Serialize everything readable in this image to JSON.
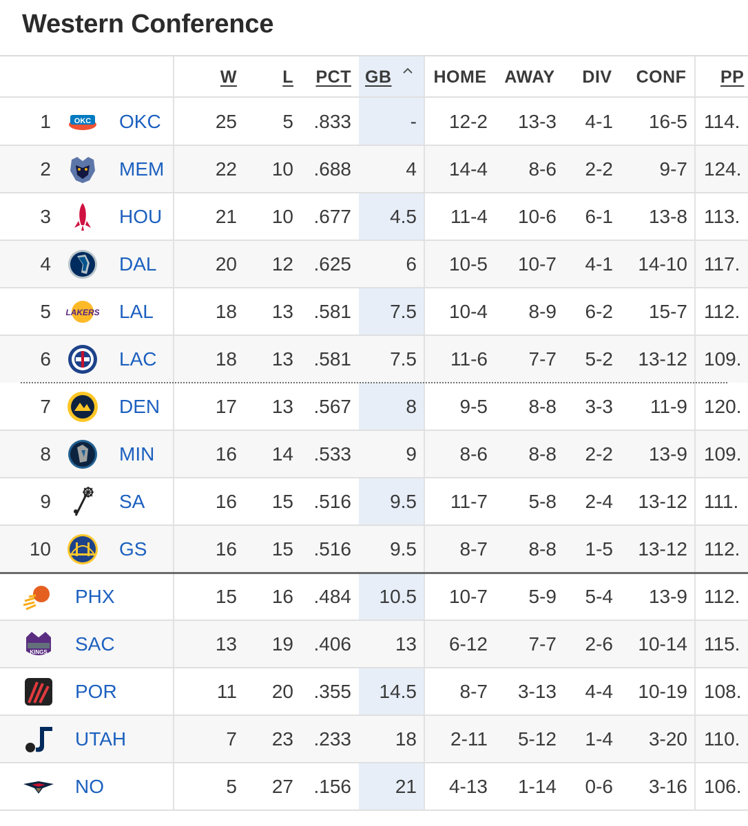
{
  "title": "Western Conference",
  "columns": {
    "w": "W",
    "l": "L",
    "pct": "PCT",
    "gb": "GB",
    "gb_sort_icon": "chevron-up-icon",
    "home": "HOME",
    "away": "AWAY",
    "div": "DIV",
    "conf": "CONF",
    "ppg": "PP"
  },
  "rows": [
    {
      "rank": "1",
      "team": "OKC",
      "logo": "okc-thunder-logo",
      "w": "25",
      "l": "5",
      "pct": ".833",
      "gb": "-",
      "home": "12-2",
      "away": "13-3",
      "div": "4-1",
      "conf": "16-5",
      "ppg": "114."
    },
    {
      "rank": "2",
      "team": "MEM",
      "logo": "memphis-grizzlies-logo",
      "w": "22",
      "l": "10",
      "pct": ".688",
      "gb": "4",
      "home": "14-4",
      "away": "8-6",
      "div": "2-2",
      "conf": "9-7",
      "ppg": "124."
    },
    {
      "rank": "3",
      "team": "HOU",
      "logo": "houston-rockets-logo",
      "w": "21",
      "l": "10",
      "pct": ".677",
      "gb": "4.5",
      "home": "11-4",
      "away": "10-6",
      "div": "6-1",
      "conf": "13-8",
      "ppg": "113."
    },
    {
      "rank": "4",
      "team": "DAL",
      "logo": "dallas-mavericks-logo",
      "w": "20",
      "l": "12",
      "pct": ".625",
      "gb": "6",
      "home": "10-5",
      "away": "10-7",
      "div": "4-1",
      "conf": "14-10",
      "ppg": "117."
    },
    {
      "rank": "5",
      "team": "LAL",
      "logo": "la-lakers-logo",
      "w": "18",
      "l": "13",
      "pct": ".581",
      "gb": "7.5",
      "home": "10-4",
      "away": "8-9",
      "div": "6-2",
      "conf": "15-7",
      "ppg": "112."
    },
    {
      "rank": "6",
      "team": "LAC",
      "logo": "la-clippers-logo",
      "w": "18",
      "l": "13",
      "pct": ".581",
      "gb": "7.5",
      "home": "11-6",
      "away": "7-7",
      "div": "5-2",
      "conf": "13-12",
      "ppg": "109."
    },
    {
      "rank": "7",
      "team": "DEN",
      "logo": "denver-nuggets-logo",
      "w": "17",
      "l": "13",
      "pct": ".567",
      "gb": "8",
      "home": "9-5",
      "away": "8-8",
      "div": "3-3",
      "conf": "11-9",
      "ppg": "120."
    },
    {
      "rank": "8",
      "team": "MIN",
      "logo": "minnesota-timberwolves-logo",
      "w": "16",
      "l": "14",
      "pct": ".533",
      "gb": "9",
      "home": "8-6",
      "away": "8-8",
      "div": "2-2",
      "conf": "13-9",
      "ppg": "109."
    },
    {
      "rank": "9",
      "team": "SA",
      "logo": "san-antonio-spurs-logo",
      "w": "16",
      "l": "15",
      "pct": ".516",
      "gb": "9.5",
      "home": "11-7",
      "away": "5-8",
      "div": "2-4",
      "conf": "13-12",
      "ppg": "111."
    },
    {
      "rank": "10",
      "team": "GS",
      "logo": "golden-state-warriors-logo",
      "w": "16",
      "l": "15",
      "pct": ".516",
      "gb": "9.5",
      "home": "8-7",
      "away": "8-8",
      "div": "1-5",
      "conf": "13-12",
      "ppg": "112."
    },
    {
      "rank": "",
      "team": "PHX",
      "logo": "phoenix-suns-logo",
      "w": "15",
      "l": "16",
      "pct": ".484",
      "gb": "10.5",
      "home": "10-7",
      "away": "5-9",
      "div": "5-4",
      "conf": "13-9",
      "ppg": "112."
    },
    {
      "rank": "",
      "team": "SAC",
      "logo": "sacramento-kings-logo",
      "w": "13",
      "l": "19",
      "pct": ".406",
      "gb": "13",
      "home": "6-12",
      "away": "7-7",
      "div": "2-6",
      "conf": "10-14",
      "ppg": "115."
    },
    {
      "rank": "",
      "team": "POR",
      "logo": "portland-trail-blazers-logo",
      "w": "11",
      "l": "20",
      "pct": ".355",
      "gb": "14.5",
      "home": "8-7",
      "away": "3-13",
      "div": "4-4",
      "conf": "10-19",
      "ppg": "108."
    },
    {
      "rank": "",
      "team": "UTAH",
      "logo": "utah-jazz-logo",
      "w": "7",
      "l": "23",
      "pct": ".233",
      "gb": "18",
      "home": "2-11",
      "away": "5-12",
      "div": "1-4",
      "conf": "3-20",
      "ppg": "110."
    },
    {
      "rank": "",
      "team": "NO",
      "logo": "new-orleans-pelicans-logo",
      "w": "5",
      "l": "27",
      "pct": ".156",
      "gb": "21",
      "home": "4-13",
      "away": "1-14",
      "div": "0-6",
      "conf": "3-16",
      "ppg": "106."
    }
  ],
  "separators": {
    "play_in_cut_after_rank": "6",
    "elimination_cut_after_rank": "10"
  }
}
